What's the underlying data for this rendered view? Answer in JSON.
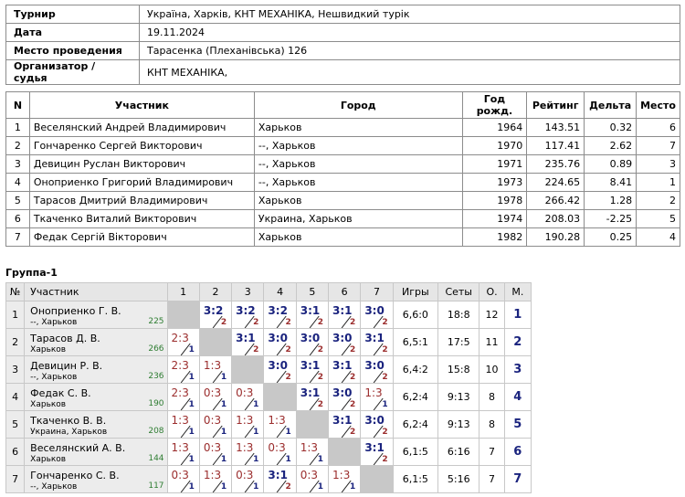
{
  "info": [
    {
      "key": "Турнир",
      "value": "Україна, Харків, КНТ МЕХАНІКА, Нешвидкий турік"
    },
    {
      "key": "Дата",
      "value": "19.11.2024"
    },
    {
      "key": "Место проведения",
      "value": "Тарасенка (Плеханівська) 126"
    },
    {
      "key": "Организатор / судья",
      "value": "КНТ МЕХАНІКА,"
    }
  ],
  "players": {
    "headers": {
      "n": "N",
      "name": "Участник",
      "city": "Город",
      "year": "Год рожд.",
      "rating": "Рейтинг",
      "delta": "Дельта",
      "place": "Место"
    },
    "rows": [
      {
        "n": "1",
        "name": "Веселянский Андрей Владимирович",
        "city": "Харьков",
        "year": "1964",
        "rating": "143.51",
        "delta": "0.32",
        "place": "6"
      },
      {
        "n": "2",
        "name": "Гончаренко Сергей Викторович",
        "city": "--, Харьков",
        "year": "1970",
        "rating": "117.41",
        "delta": "2.62",
        "place": "7"
      },
      {
        "n": "3",
        "name": "Девицин Руслан Викторович",
        "city": "--, Харьков",
        "year": "1971",
        "rating": "235.76",
        "delta": "0.89",
        "place": "3"
      },
      {
        "n": "4",
        "name": "Оноприенко Григорий Владимирович",
        "city": "--, Харьков",
        "year": "1973",
        "rating": "224.65",
        "delta": "8.41",
        "place": "1"
      },
      {
        "n": "5",
        "name": "Тарасов Дмитрий Владимирович",
        "city": "Харьков",
        "year": "1978",
        "rating": "266.42",
        "delta": "1.28",
        "place": "2"
      },
      {
        "n": "6",
        "name": "Ткаченко Виталий Викторович",
        "city": "Украина, Харьков",
        "year": "1974",
        "rating": "208.03",
        "delta": "-2.25",
        "place": "5"
      },
      {
        "n": "7",
        "name": "Федак Сергій Вікторович",
        "city": "Харьков",
        "year": "1982",
        "rating": "190.28",
        "delta": "0.25",
        "place": "4"
      }
    ]
  },
  "group": {
    "title": "Группа-1",
    "headers": {
      "num": "№",
      "name": "Участник",
      "cols": [
        "1",
        "2",
        "3",
        "4",
        "5",
        "6",
        "7"
      ],
      "games": "Игры",
      "sets": "Сеты",
      "points": "О.",
      "place": "М."
    },
    "rows": [
      {
        "n": "1",
        "name": "Оноприенко Г. В.",
        "city": "--, Харьков",
        "rating": "225",
        "cells": [
          null,
          [
            "3:2",
            "2"
          ],
          [
            "3:2",
            "2"
          ],
          [
            "3:2",
            "2"
          ],
          [
            "3:1",
            "2"
          ],
          [
            "3:1",
            "2"
          ],
          [
            "3:0",
            "2"
          ]
        ],
        "games": "6,6:0",
        "sets": "18:8",
        "points": "12",
        "place": "1"
      },
      {
        "n": "2",
        "name": "Тарасов Д. В.",
        "city": "Харьков",
        "rating": "266",
        "cells": [
          [
            "2:3",
            "1"
          ],
          null,
          [
            "3:1",
            "2"
          ],
          [
            "3:0",
            "2"
          ],
          [
            "3:0",
            "2"
          ],
          [
            "3:0",
            "2"
          ],
          [
            "3:1",
            "2"
          ]
        ],
        "games": "6,5:1",
        "sets": "17:5",
        "points": "11",
        "place": "2"
      },
      {
        "n": "3",
        "name": "Девицин Р. В.",
        "city": "--, Харьков",
        "rating": "236",
        "cells": [
          [
            "2:3",
            "1"
          ],
          [
            "1:3",
            "1"
          ],
          null,
          [
            "3:0",
            "2"
          ],
          [
            "3:1",
            "2"
          ],
          [
            "3:1",
            "2"
          ],
          [
            "3:0",
            "2"
          ]
        ],
        "games": "6,4:2",
        "sets": "15:8",
        "points": "10",
        "place": "3"
      },
      {
        "n": "4",
        "name": "Федак С. В.",
        "city": "Харьков",
        "rating": "190",
        "cells": [
          [
            "2:3",
            "1"
          ],
          [
            "0:3",
            "1"
          ],
          [
            "0:3",
            "1"
          ],
          null,
          [
            "3:1",
            "2"
          ],
          [
            "3:0",
            "2"
          ],
          [
            "1:3",
            "1"
          ]
        ],
        "games": "6,2:4",
        "sets": "9:13",
        "points": "8",
        "place": "4"
      },
      {
        "n": "5",
        "name": "Ткаченко В. В.",
        "city": "Украина, Харьков",
        "rating": "208",
        "cells": [
          [
            "1:3",
            "1"
          ],
          [
            "0:3",
            "1"
          ],
          [
            "1:3",
            "1"
          ],
          [
            "1:3",
            "1"
          ],
          null,
          [
            "3:1",
            "2"
          ],
          [
            "3:0",
            "2"
          ]
        ],
        "games": "6,2:4",
        "sets": "9:13",
        "points": "8",
        "place": "5"
      },
      {
        "n": "6",
        "name": "Веселянский А. В.",
        "city": "Харьков",
        "rating": "144",
        "cells": [
          [
            "1:3",
            "1"
          ],
          [
            "0:3",
            "1"
          ],
          [
            "1:3",
            "1"
          ],
          [
            "0:3",
            "1"
          ],
          [
            "1:3",
            "1"
          ],
          null,
          [
            "3:1",
            "2"
          ]
        ],
        "games": "6,1:5",
        "sets": "6:16",
        "points": "7",
        "place": "6"
      },
      {
        "n": "7",
        "name": "Гончаренко С. В.",
        "city": "--, Харьков",
        "rating": "117",
        "cells": [
          [
            "0:3",
            "1"
          ],
          [
            "1:3",
            "1"
          ],
          [
            "0:3",
            "1"
          ],
          [
            "3:1",
            "2"
          ],
          [
            "0:3",
            "1"
          ],
          [
            "1:3",
            "1"
          ],
          null
        ],
        "games": "6,1:5",
        "sets": "5:16",
        "points": "7",
        "place": "7"
      }
    ]
  },
  "colors": {
    "win": "#1a237e",
    "loss": "#9b2d2d",
    "rating": "#2e7d32",
    "self_cell": "#c8c8c8",
    "header_bg": "#e6e6e6"
  }
}
